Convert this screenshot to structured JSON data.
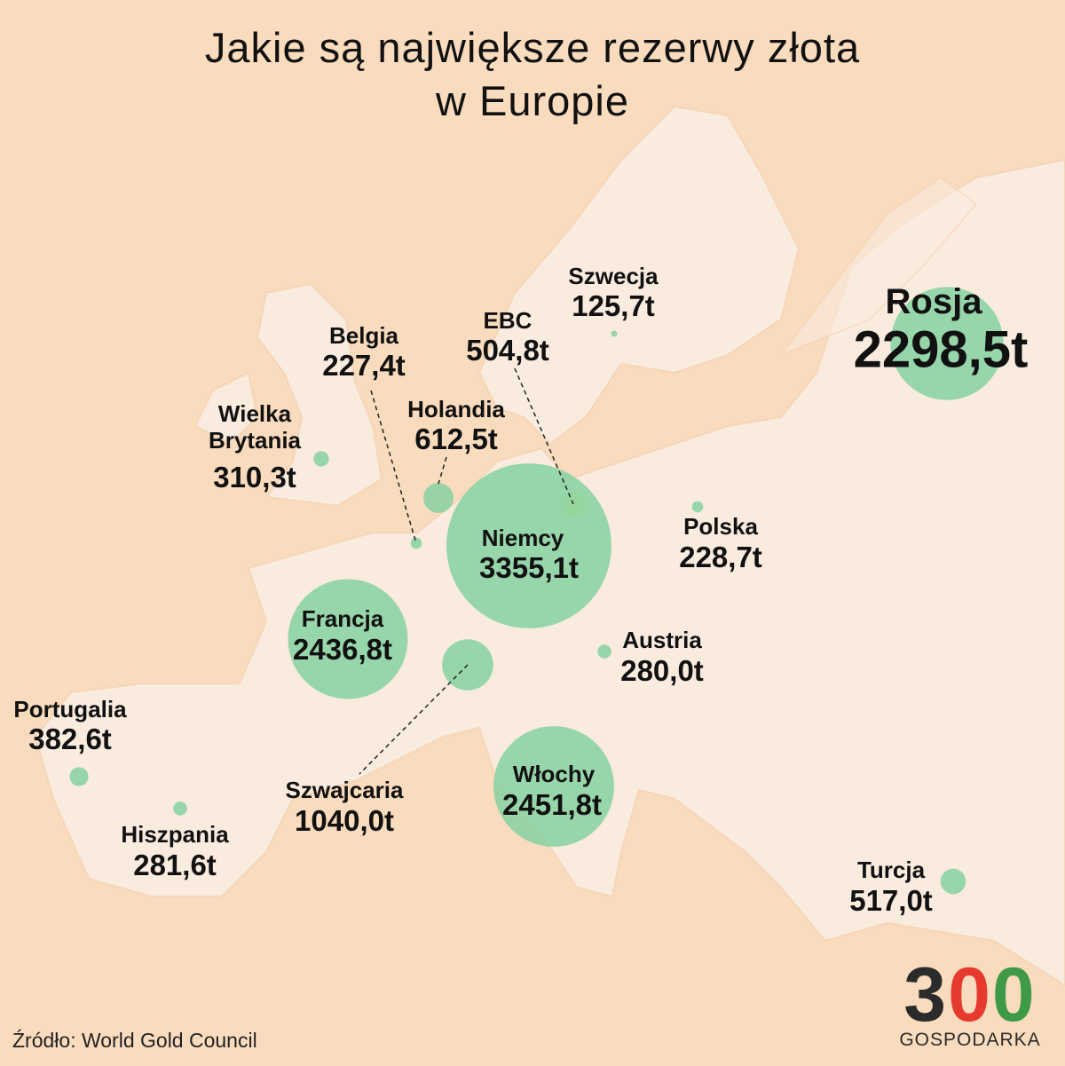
{
  "chart_data": {
    "type": "bubble-map",
    "title": [
      "Jakie są największe rezerwy złota",
      "w Europie"
    ],
    "categories": [
      "Rosja",
      "Szwecja",
      "EBC",
      "Belgia",
      "Holandia",
      "Wielka Brytania",
      "Niemcy",
      "Polska",
      "Francja",
      "Austria",
      "Portugalia",
      "Szwajcaria",
      "Włochy",
      "Hiszpania",
      "Turcja"
    ],
    "values": [
      2298.5,
      125.7,
      504.8,
      227.4,
      612.5,
      310.3,
      3355.1,
      228.7,
      2436.8,
      280.0,
      382.6,
      1040.0,
      2451.8,
      281.6,
      517.0
    ],
    "value_labels": [
      "2298,5t",
      "125,7t",
      "504,8t",
      "227,4t",
      "612,5t",
      "310,3t",
      "3355,1t",
      "228,7t",
      "2436,8t",
      "280,0t",
      "382,6t",
      "1040,0t",
      "2451,8t",
      "281,6t",
      "517,0t"
    ],
    "colors": [
      "#8ed3a5",
      "#8ed3a5",
      "#f5ee4a",
      "#8ed3a5",
      "#8ed3a5",
      "#8ed3a5",
      "#8ed3a5",
      "#8ed3a5",
      "#8ed3a5",
      "#8ed3a5",
      "#8ed3a5",
      "#8ed3a5",
      "#8ed3a5",
      "#8ed3a5",
      "#8ed3a5"
    ],
    "source": "Źródło: World Gold Council",
    "logo": {
      "number": "300",
      "name": "GOSPODARKA"
    }
  }
}
